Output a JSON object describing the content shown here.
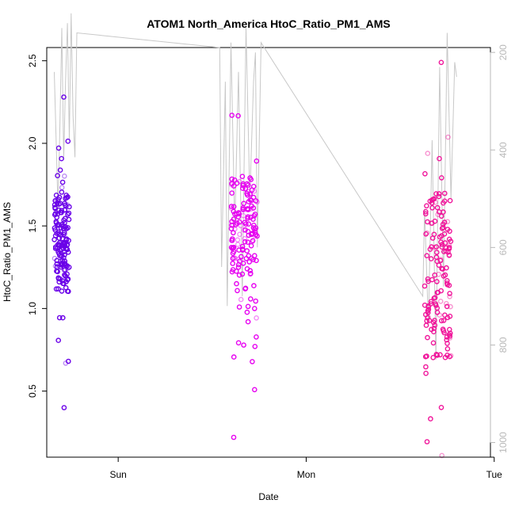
{
  "chart_data": {
    "type": "scatter",
    "title": "ATOM1 North_America HtoC_Ratio_PM1_AMS",
    "xlabel": "Date",
    "ylabel": "HtoC_Ratio_PM1_AMS",
    "x_ticks": [
      "Sun",
      "Mon",
      "Tue"
    ],
    "x_axis_unit": "day",
    "x_range": [
      -0.38,
      1.98
    ],
    "y_range": [
      0.1,
      2.58
    ],
    "y_ticks": [
      0.5,
      1.0,
      1.5,
      2.0,
      2.5
    ],
    "y2_range": [
      1030,
      190
    ],
    "y2_ticks": [
      200,
      400,
      600,
      800,
      1000
    ],
    "grid": false,
    "legend": "none",
    "colors": {
      "series_points": [
        "#6a00e8",
        "#e600f0",
        "#f0149a"
      ],
      "pressure_line": "#c8c8c8",
      "axis": "#000000",
      "right_axis": "#b8b8b8"
    },
    "point_clusters": [
      {
        "day_center": -0.3,
        "day_halfwidth": 0.04,
        "y_min": 0.4,
        "y_max": 2.28,
        "y_core": [
          1.1,
          1.7
        ]
      },
      {
        "day_center": 0.67,
        "day_halfwidth": 0.07,
        "y_min": 0.22,
        "y_max": 2.17,
        "y_core": [
          1.2,
          1.8
        ]
      },
      {
        "day_center": 1.7,
        "day_halfwidth": 0.07,
        "y_min": 0.11,
        "y_max": 2.49,
        "y_core": [
          0.7,
          1.7
        ]
      }
    ],
    "pressure_line_hpa": [
      [
        -0.34,
        240
      ],
      [
        -0.32,
        520
      ],
      [
        -0.31,
        350
      ],
      [
        -0.3,
        150
      ],
      [
        -0.29,
        420
      ],
      [
        -0.28,
        260
      ],
      [
        -0.27,
        140
      ],
      [
        -0.26,
        380
      ],
      [
        -0.25,
        120
      ],
      [
        -0.24,
        330
      ],
      [
        -0.23,
        415
      ],
      [
        -0.22,
        160
      ],
      [
        0.54,
        190
      ],
      [
        0.55,
        640
      ],
      [
        0.57,
        260
      ],
      [
        0.58,
        720
      ],
      [
        0.6,
        180
      ],
      [
        0.62,
        560
      ],
      [
        0.64,
        240
      ],
      [
        0.66,
        700
      ],
      [
        0.68,
        150
      ],
      [
        0.7,
        500
      ],
      [
        0.72,
        260
      ],
      [
        0.73,
        200
      ],
      [
        0.74,
        600
      ],
      [
        0.76,
        180
      ],
      [
        1.62,
        700
      ],
      [
        1.63,
        520
      ],
      [
        1.65,
        760
      ],
      [
        1.67,
        380
      ],
      [
        1.69,
        830
      ],
      [
        1.71,
        230
      ],
      [
        1.73,
        680
      ],
      [
        1.75,
        160
      ],
      [
        1.77,
        500
      ],
      [
        1.79,
        220
      ],
      [
        1.8,
        250
      ]
    ]
  }
}
